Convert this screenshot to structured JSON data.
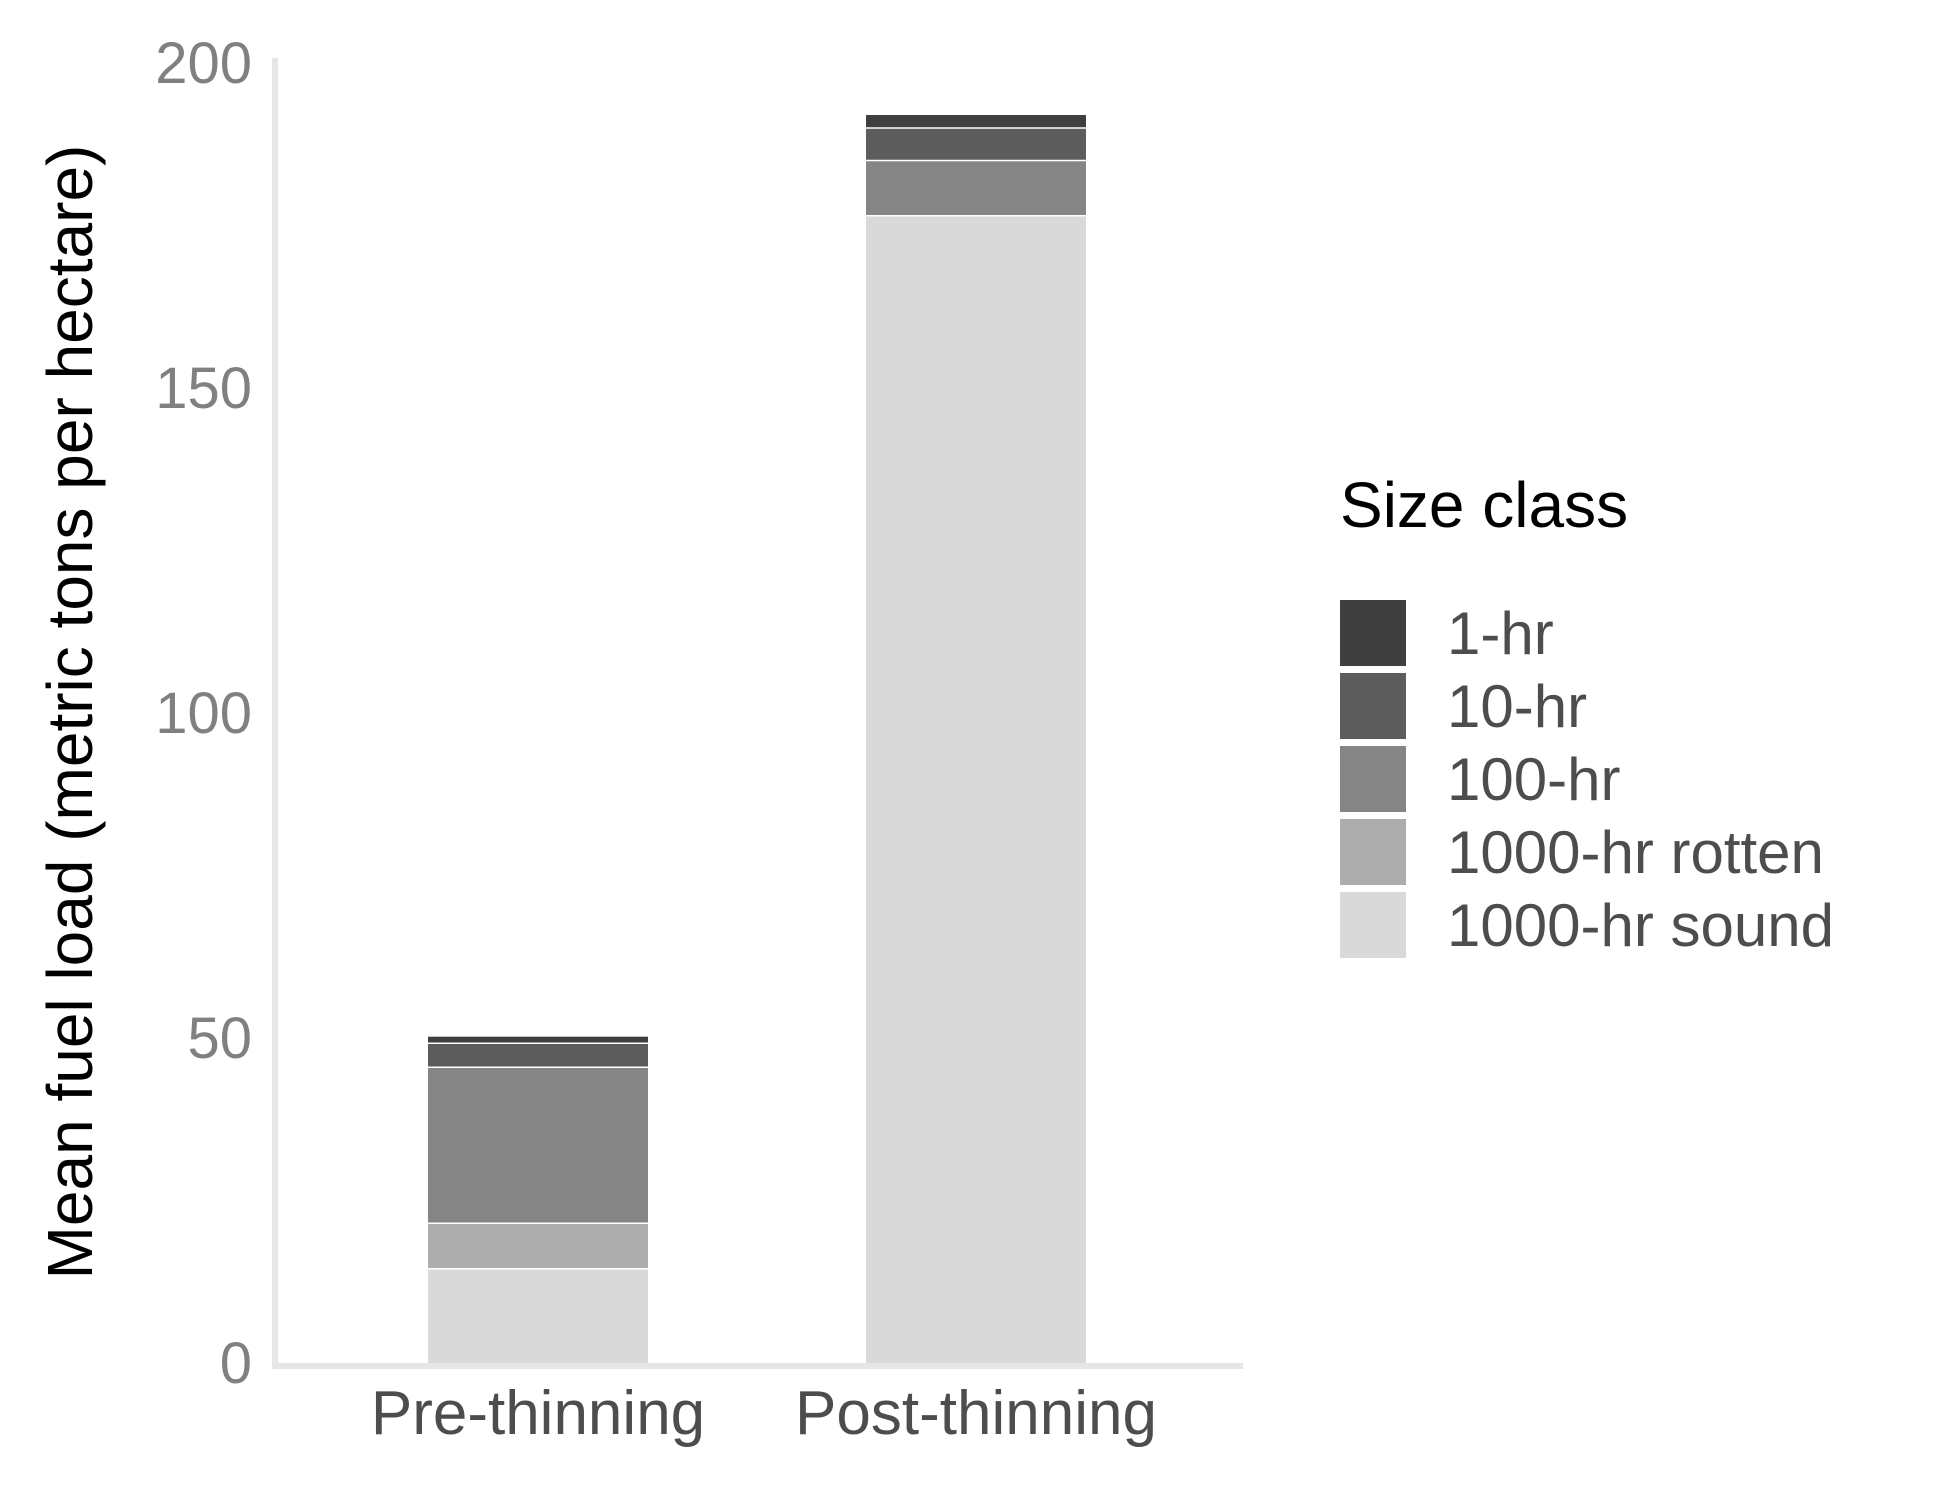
{
  "chart_data": {
    "type": "bar",
    "stacked": true,
    "categories": [
      "Pre-thinning",
      "Post-thinning"
    ],
    "ylabel": "Mean fuel load (metric tons per hectare)",
    "xlabel": "",
    "ylim": [
      0,
      200
    ],
    "yticks": [
      "0",
      "50",
      "100",
      "150",
      "200"
    ],
    "grid": false,
    "legend": {
      "title": "Size class",
      "placement": "right"
    },
    "series": [
      {
        "name": "1000-hr sound",
        "color": "#d9d9d9",
        "values": [
          14.5,
          176.5
        ]
      },
      {
        "name": "1000-hr rotten",
        "color": "#adadad",
        "values": [
          7.0,
          0
        ]
      },
      {
        "name": "100-hr",
        "color": "#858585",
        "values": [
          24.0,
          8.5
        ]
      },
      {
        "name": "10-hr",
        "color": "#5c5c5c",
        "values": [
          3.7,
          5.0
        ]
      },
      {
        "name": "1-hr",
        "color": "#3f3f3f",
        "values": [
          1.0,
          2.0
        ]
      }
    ],
    "legend_order": [
      "1-hr",
      "10-hr",
      "100-hr",
      "1000-hr rotten",
      "1000-hr sound"
    ]
  }
}
